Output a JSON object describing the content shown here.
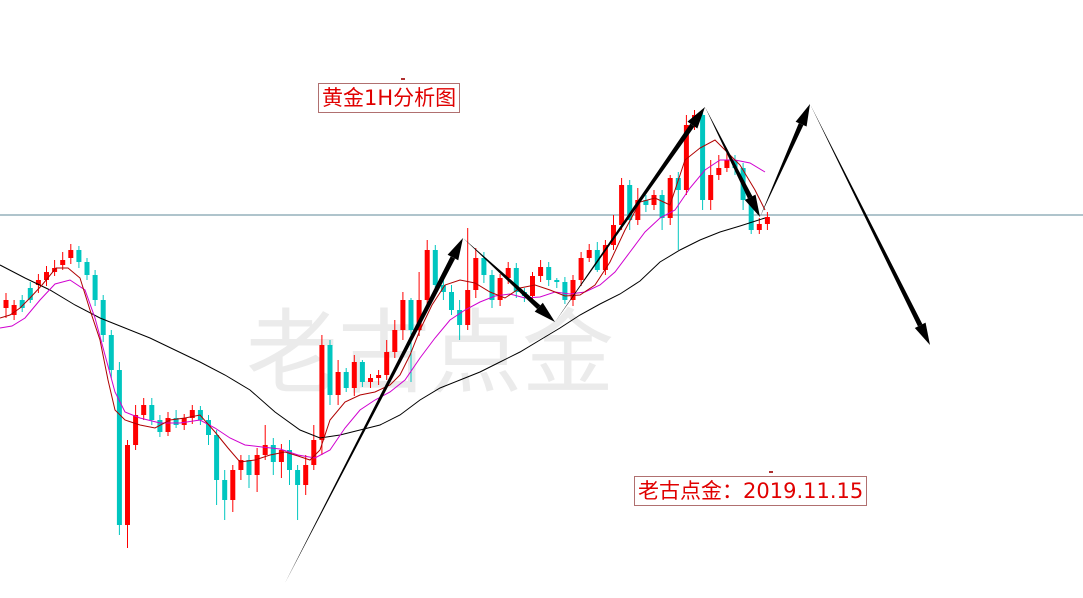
{
  "annotations": {
    "title": "黄金1H分析图",
    "watermark": "老古点金",
    "author_date": "老古点金：2019.11.15"
  },
  "colors": {
    "up_candle": "#ff0000",
    "down_candle": "#00c6c0",
    "ma_fast": "#b00000",
    "ma_mid": "#d000d0",
    "ma_slow": "#000000",
    "level_line": "#5f8a98",
    "arrow": "#000000",
    "watermark": "#ebebeb"
  },
  "chart_data": {
    "type": "candlestick",
    "title": "黄金1H分析图",
    "xlabel": "",
    "ylabel": "",
    "grid": false,
    "legend": "none",
    "ylim": [
      0,
      598
    ],
    "horizontal_level": 215,
    "candles": [
      [
        308,
        300,
        318,
        293
      ],
      [
        315,
        305,
        320,
        300
      ],
      [
        300,
        308,
        312,
        295
      ],
      [
        288,
        300,
        303,
        282
      ],
      [
        285,
        280,
        293,
        274
      ],
      [
        280,
        272,
        286,
        266
      ],
      [
        272,
        268,
        276,
        260
      ],
      [
        265,
        260,
        270,
        252
      ],
      [
        258,
        250,
        264,
        244
      ],
      [
        250,
        262,
        268,
        246
      ],
      [
        262,
        275,
        280,
        258
      ],
      [
        275,
        300,
        306,
        270
      ],
      [
        300,
        335,
        342,
        295
      ],
      [
        335,
        370,
        378,
        330
      ],
      [
        370,
        525,
        535,
        362
      ],
      [
        525,
        445,
        548,
        440
      ],
      [
        445,
        415,
        450,
        405
      ],
      [
        415,
        405,
        420,
        398
      ],
      [
        405,
        420,
        425,
        398
      ],
      [
        420,
        432,
        437,
        415
      ],
      [
        432,
        418,
        436,
        412
      ],
      [
        418,
        425,
        428,
        410
      ],
      [
        425,
        418,
        430,
        414
      ],
      [
        418,
        410,
        424,
        405
      ],
      [
        410,
        420,
        425,
        406
      ],
      [
        420,
        435,
        445,
        415
      ],
      [
        435,
        480,
        505,
        430
      ],
      [
        480,
        500,
        520,
        470
      ],
      [
        500,
        470,
        512,
        465
      ],
      [
        470,
        460,
        480,
        455
      ],
      [
        460,
        475,
        488,
        455
      ],
      [
        475,
        455,
        492,
        448
      ],
      [
        455,
        445,
        460,
        425
      ],
      [
        445,
        462,
        475,
        438
      ],
      [
        462,
        450,
        478,
        444
      ],
      [
        450,
        470,
        485,
        440
      ],
      [
        470,
        485,
        520,
        465
      ],
      [
        485,
        465,
        495,
        455
      ],
      [
        465,
        440,
        470,
        425
      ],
      [
        440,
        345,
        455,
        335
      ],
      [
        345,
        395,
        405,
        340
      ],
      [
        395,
        372,
        405,
        360
      ],
      [
        372,
        388,
        392,
        368
      ],
      [
        388,
        362,
        396,
        355
      ],
      [
        362,
        382,
        387,
        360
      ],
      [
        382,
        378,
        388,
        374
      ],
      [
        378,
        375,
        385,
        370
      ],
      [
        375,
        352,
        380,
        340
      ],
      [
        352,
        330,
        358,
        320
      ],
      [
        330,
        300,
        340,
        292
      ],
      [
        300,
        330,
        382,
        298
      ],
      [
        330,
        300,
        336,
        272
      ],
      [
        300,
        250,
        305,
        240
      ],
      [
        250,
        285,
        291,
        245
      ],
      [
        285,
        292,
        300,
        278
      ],
      [
        292,
        310,
        315,
        285
      ],
      [
        310,
        325,
        340,
        300
      ],
      [
        325,
        290,
        330,
        228
      ],
      [
        290,
        258,
        298,
        248
      ],
      [
        258,
        275,
        283,
        252
      ],
      [
        275,
        300,
        308,
        270
      ],
      [
        300,
        278,
        306,
        274
      ],
      [
        278,
        268,
        284,
        262
      ],
      [
        268,
        292,
        298,
        263
      ],
      [
        292,
        296,
        302,
        288
      ],
      [
        296,
        276,
        301,
        272
      ],
      [
        276,
        267,
        282,
        260
      ],
      [
        267,
        280,
        286,
        262
      ],
      [
        280,
        282,
        288,
        278
      ],
      [
        282,
        300,
        304,
        277
      ],
      [
        300,
        280,
        306,
        275
      ],
      [
        280,
        258,
        286,
        252
      ],
      [
        258,
        250,
        262,
        244
      ],
      [
        250,
        270,
        272,
        242
      ],
      [
        270,
        245,
        275,
        240
      ],
      [
        245,
        225,
        250,
        215
      ],
      [
        225,
        185,
        230,
        178
      ],
      [
        185,
        220,
        230,
        180
      ],
      [
        220,
        200,
        225,
        188
      ],
      [
        200,
        205,
        212,
        195
      ],
      [
        205,
        195,
        210,
        190
      ],
      [
        195,
        218,
        230,
        190
      ],
      [
        218,
        178,
        225,
        175
      ],
      [
        178,
        190,
        250,
        172
      ],
      [
        190,
        125,
        195,
        115
      ],
      [
        125,
        115,
        130,
        110
      ],
      [
        115,
        200,
        210,
        110
      ],
      [
        200,
        175,
        210,
        160
      ],
      [
        175,
        168,
        180,
        155
      ],
      [
        168,
        160,
        172,
        150
      ],
      [
        160,
        168,
        175,
        155
      ],
      [
        168,
        200,
        210,
        163
      ],
      [
        200,
        230,
        234,
        195
      ],
      [
        230,
        224,
        234,
        218
      ],
      [
        224,
        217,
        230,
        212
      ]
    ],
    "ma_fast": [
      [
        0,
        318
      ],
      [
        10,
        315
      ],
      [
        20,
        308
      ],
      [
        30,
        298
      ],
      [
        42,
        285
      ],
      [
        56,
        268
      ],
      [
        68,
        268
      ],
      [
        80,
        278
      ],
      [
        90,
        310
      ],
      [
        100,
        340
      ],
      [
        108,
        380
      ],
      [
        115,
        410
      ],
      [
        125,
        420
      ],
      [
        140,
        425
      ],
      [
        155,
        428
      ],
      [
        170,
        420
      ],
      [
        185,
        418
      ],
      [
        200,
        415
      ],
      [
        215,
        432
      ],
      [
        228,
        448
      ],
      [
        240,
        462
      ],
      [
        255,
        460
      ],
      [
        270,
        455
      ],
      [
        285,
        452
      ],
      [
        298,
        456
      ],
      [
        310,
        460
      ],
      [
        320,
        450
      ],
      [
        330,
        420
      ],
      [
        345,
        402
      ],
      [
        360,
        395
      ],
      [
        375,
        392
      ],
      [
        390,
        385
      ],
      [
        400,
        375
      ],
      [
        410,
        355
      ],
      [
        420,
        330
      ],
      [
        432,
        305
      ],
      [
        445,
        285
      ],
      [
        460,
        280
      ],
      [
        475,
        283
      ],
      [
        490,
        292
      ],
      [
        505,
        298
      ],
      [
        520,
        288
      ],
      [
        535,
        285
      ],
      [
        550,
        290
      ],
      [
        565,
        296
      ],
      [
        580,
        295
      ],
      [
        595,
        285
      ],
      [
        610,
        262
      ],
      [
        625,
        230
      ],
      [
        640,
        202
      ],
      [
        655,
        198
      ],
      [
        670,
        205
      ],
      [
        685,
        160
      ],
      [
        700,
        148
      ],
      [
        715,
        140
      ],
      [
        725,
        150
      ],
      [
        740,
        165
      ],
      [
        755,
        190
      ],
      [
        765,
        210
      ]
    ],
    "ma_mid": [
      [
        0,
        328
      ],
      [
        12,
        326
      ],
      [
        25,
        318
      ],
      [
        40,
        300
      ],
      [
        55,
        284
      ],
      [
        70,
        280
      ],
      [
        85,
        290
      ],
      [
        95,
        318
      ],
      [
        105,
        355
      ],
      [
        115,
        392
      ],
      [
        125,
        412
      ],
      [
        140,
        418
      ],
      [
        160,
        423
      ],
      [
        180,
        423
      ],
      [
        200,
        420
      ],
      [
        215,
        428
      ],
      [
        230,
        438
      ],
      [
        245,
        445
      ],
      [
        262,
        447
      ],
      [
        280,
        449
      ],
      [
        298,
        455
      ],
      [
        315,
        458
      ],
      [
        330,
        450
      ],
      [
        345,
        428
      ],
      [
        360,
        410
      ],
      [
        375,
        400
      ],
      [
        390,
        392
      ],
      [
        405,
        380
      ],
      [
        420,
        358
      ],
      [
        435,
        338
      ],
      [
        450,
        320
      ],
      [
        465,
        310
      ],
      [
        480,
        302
      ],
      [
        495,
        296
      ],
      [
        510,
        294
      ],
      [
        525,
        298
      ],
      [
        540,
        297
      ],
      [
        555,
        292
      ],
      [
        570,
        294
      ],
      [
        585,
        292
      ],
      [
        600,
        285
      ],
      [
        615,
        272
      ],
      [
        630,
        252
      ],
      [
        645,
        232
      ],
      [
        660,
        218
      ],
      [
        675,
        210
      ],
      [
        690,
        188
      ],
      [
        705,
        170
      ],
      [
        720,
        160
      ],
      [
        735,
        160
      ],
      [
        750,
        163
      ],
      [
        765,
        172
      ]
    ],
    "ma_slow": [
      [
        0,
        265
      ],
      [
        25,
        278
      ],
      [
        50,
        290
      ],
      [
        75,
        305
      ],
      [
        100,
        318
      ],
      [
        125,
        328
      ],
      [
        150,
        338
      ],
      [
        175,
        350
      ],
      [
        200,
        362
      ],
      [
        225,
        375
      ],
      [
        250,
        390
      ],
      [
        275,
        412
      ],
      [
        300,
        430
      ],
      [
        320,
        438
      ],
      [
        340,
        435
      ],
      [
        360,
        430
      ],
      [
        380,
        425
      ],
      [
        400,
        415
      ],
      [
        420,
        400
      ],
      [
        440,
        388
      ],
      [
        460,
        380
      ],
      [
        480,
        372
      ],
      [
        500,
        362
      ],
      [
        520,
        352
      ],
      [
        540,
        340
      ],
      [
        560,
        328
      ],
      [
        580,
        315
      ],
      [
        600,
        304
      ],
      [
        620,
        294
      ],
      [
        640,
        281
      ],
      [
        660,
        262
      ],
      [
        680,
        250
      ],
      [
        700,
        240
      ],
      [
        720,
        232
      ],
      [
        740,
        226
      ],
      [
        765,
        218
      ]
    ],
    "projection_path": [
      [
        285,
        583
      ],
      [
        463,
        238
      ],
      [
        555,
        322
      ],
      [
        705,
        107
      ],
      [
        760,
        217
      ],
      [
        810,
        104
      ],
      [
        930,
        345
      ]
    ]
  }
}
